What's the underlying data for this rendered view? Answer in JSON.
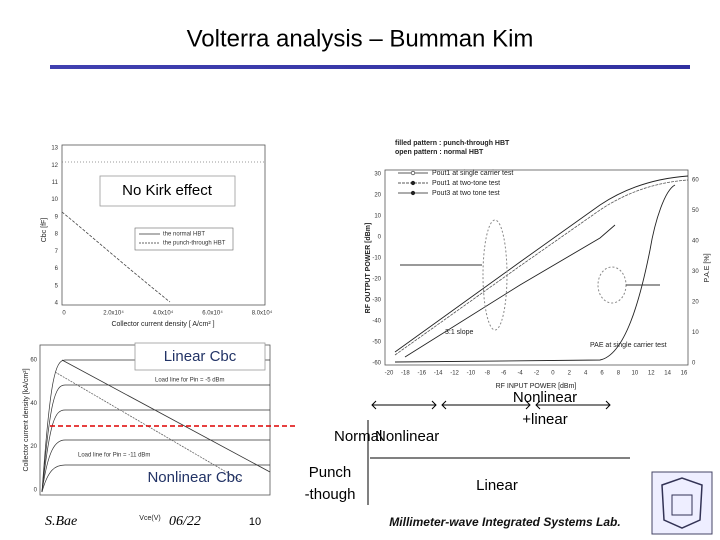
{
  "title": "Volterra analysis – Bumman Kim",
  "plot_cbc": {
    "y_label": "Cbc [fF]",
    "x_label": "Collector current density [ A/cm² ]",
    "yticks": [
      "13",
      "12",
      "11",
      "10",
      "9",
      "8",
      "7",
      "6",
      "5",
      "4"
    ],
    "xticks": [
      "0",
      "2.0x10⁴",
      "4.0x10⁴",
      "6.0x10⁴",
      "8.0x10⁴"
    ],
    "legend": [
      "the normal HBT",
      "the punch-through HBT"
    ],
    "callout": "No Kirk effect"
  },
  "plot_iv": {
    "y_label": "Collector current density [kA/cm²]",
    "x_label": "Vce(V)",
    "yticks": [
      "60",
      "40",
      "20",
      "0"
    ],
    "x_tick_end": "10",
    "load_lines": [
      "Load line for Pin = -5 dBm",
      "Load line for Pin = -11 dBm"
    ],
    "callout_top": "Linear Cbc",
    "callout_bottom": "Nonlinear Cbc"
  },
  "plot_power": {
    "header": [
      "filled pattern : punch-through HBT",
      "open pattern : normal HBT"
    ],
    "legend": [
      "Pout1 at single carrier test",
      "Pout1 at two-tone test",
      "Pout3 at two tone test"
    ],
    "y_label": "RF OUTPUT POWER [dBm]",
    "y2_label": "P.A.E [%]",
    "x_label": "RF INPUT POWER [dBm]",
    "yticks": [
      "30",
      "20",
      "10",
      "0",
      "-10",
      "-20",
      "-30",
      "-40",
      "-50",
      "-60"
    ],
    "y2ticks": [
      "60",
      "50",
      "40",
      "30",
      "20",
      "10",
      "0"
    ],
    "xticks": [
      "-20",
      "-18",
      "-16",
      "-14",
      "-12",
      "-10",
      "-8",
      "-6",
      "-4",
      "-2",
      "0",
      "2",
      "4",
      "6",
      "8",
      "10",
      "12",
      "14",
      "16"
    ],
    "annotations": [
      "3:1 slope",
      "PAE at single carrier test"
    ]
  },
  "regions": {
    "normal": "Normal",
    "nonlinear": "Nonlinear",
    "nonlinear_linear": [
      "Nonlinear",
      "+linear"
    ],
    "punch": [
      "Punch",
      "-though"
    ],
    "linear": "Linear"
  },
  "footer": {
    "author": "S.Bae",
    "page": "06/22",
    "lab": "Millimeter-wave Integrated Systems Lab."
  }
}
